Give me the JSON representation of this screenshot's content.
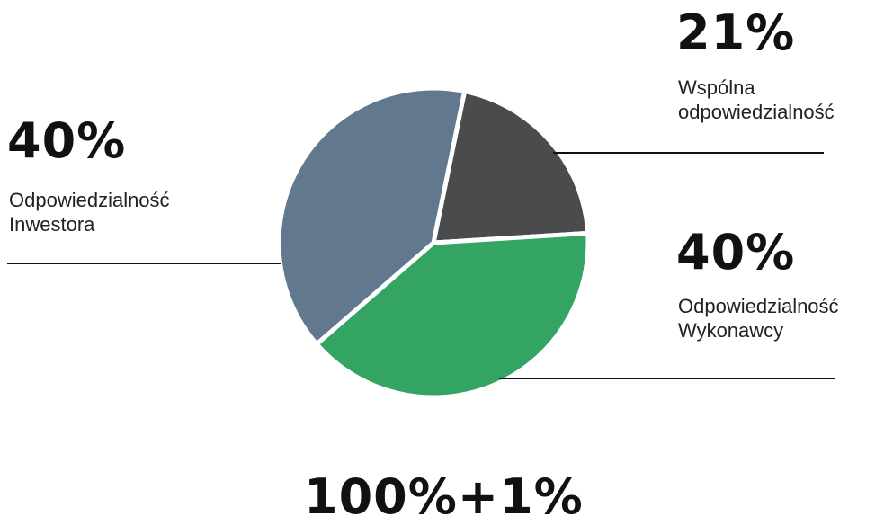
{
  "chart_data": {
    "type": "pie",
    "title": "",
    "total_label": "100%+1%",
    "slices": [
      {
        "label_line1": "Wspólna",
        "label_line2": "odpowiedzialność",
        "value": 21,
        "value_label": "21%",
        "color": "#4a4b4d"
      },
      {
        "label_line1": "Odpowiedzialność",
        "label_line2": "Wykonawcy",
        "value": 40,
        "value_label": "40%",
        "color": "#33a462"
      },
      {
        "label_line1": "Odpowiedzialność",
        "label_line2": "Inwestora",
        "value": 40,
        "value_label": "40%",
        "color": "#62788f"
      }
    ]
  }
}
